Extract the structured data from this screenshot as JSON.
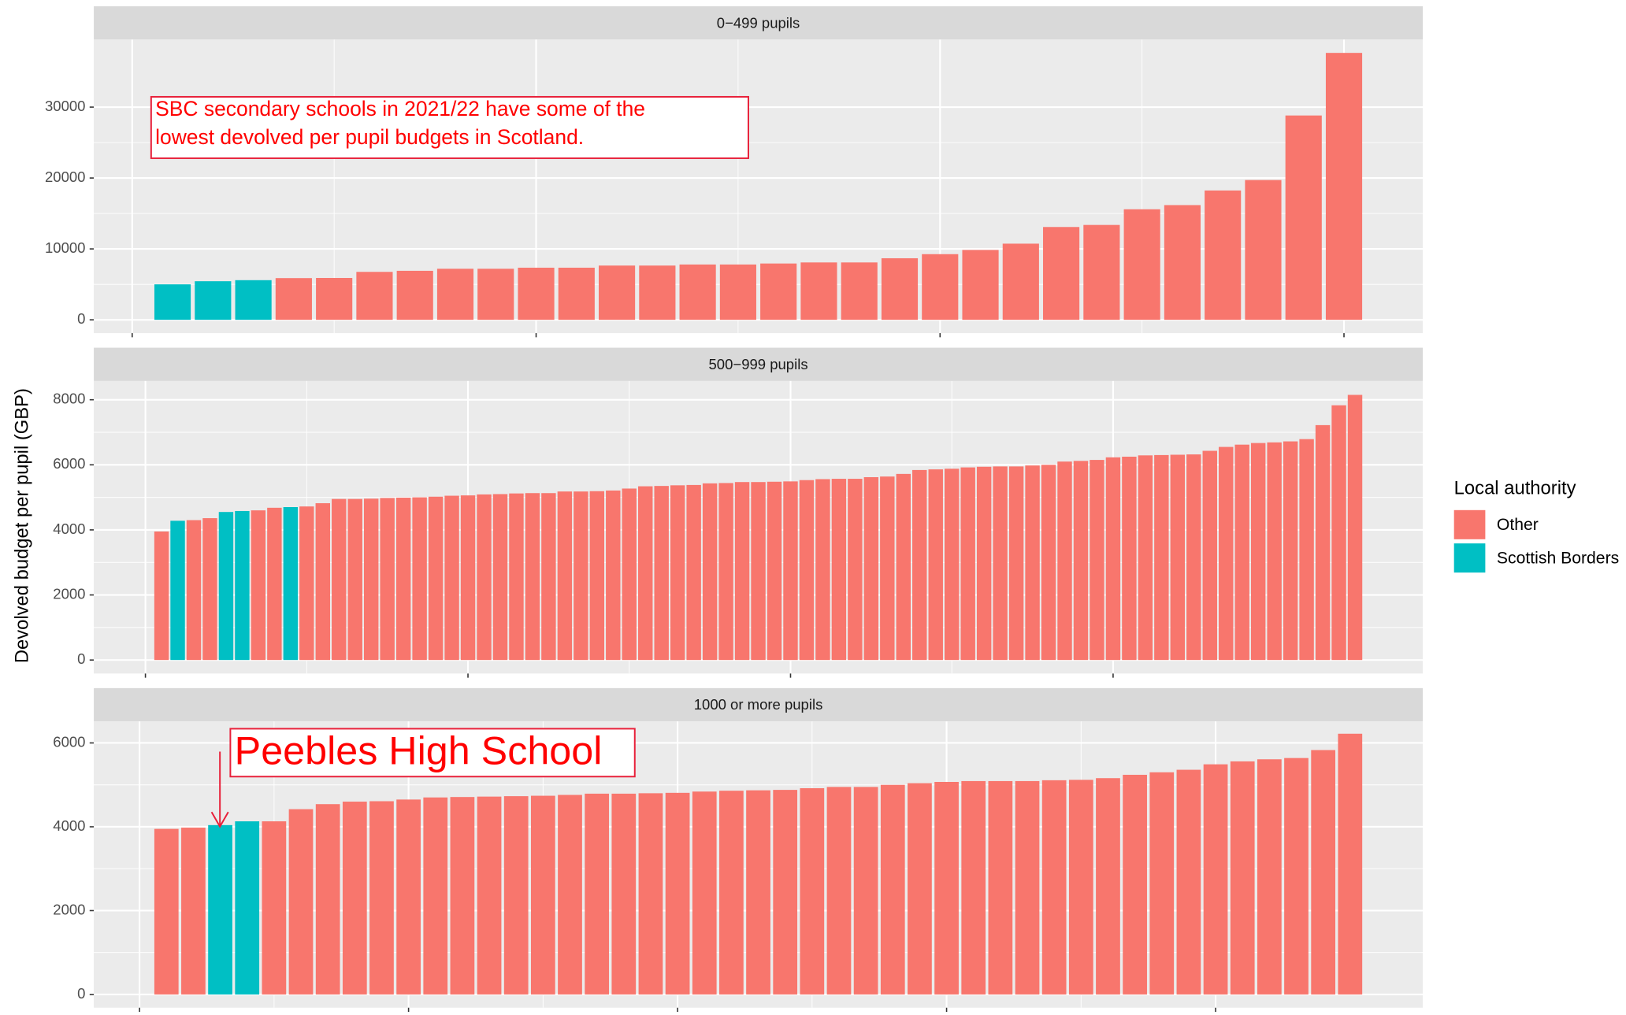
{
  "y_label": "Devolved budget per pupil (GBP)",
  "legend_title": "Local authority",
  "chart_data": [
    {
      "type": "bar",
      "title": "0−499 pupils",
      "annotation": [
        "SBC secondary schools in 2021/22 have some of the",
        "lowest devolved per pupil budgets in Scotland."
      ],
      "xlim": [
        -0.95,
        31.95
      ],
      "xticks": [
        0,
        10,
        20,
        30
      ],
      "ylim": [
        -1880,
        39530
      ],
      "yticks": [
        0,
        10000,
        20000,
        30000
      ],
      "grid": true,
      "series": [
        {
          "name": "Other",
          "color": "#F8766D",
          "x": [
            4,
            5,
            6,
            7,
            8,
            9,
            10,
            11,
            12,
            13,
            14,
            15,
            16,
            17,
            18,
            19,
            20,
            21,
            22,
            23,
            24,
            25,
            26,
            27,
            28,
            29,
            30
          ],
          "values": [
            5880,
            5900,
            6760,
            6910,
            7200,
            7200,
            7350,
            7350,
            7650,
            7650,
            7800,
            7800,
            7940,
            8090,
            8090,
            8680,
            9260,
            9850,
            10740,
            13090,
            13380,
            15590,
            16180,
            18240,
            19710,
            28820,
            37650
          ]
        },
        {
          "name": "Scottish Borders",
          "color": "#00BFC4",
          "x": [
            1,
            2,
            3
          ],
          "values": [
            5000,
            5440,
            5590
          ]
        }
      ]
    },
    {
      "type": "bar",
      "title": "500−999 pupils",
      "xlim": [
        -3.2,
        79.2
      ],
      "xticks": [
        0,
        20,
        40,
        60
      ],
      "ylim": [
        -416,
        8576
      ],
      "yticks": [
        0,
        2000,
        4000,
        6000,
        8000
      ],
      "grid": true,
      "series": [
        {
          "name": "Other",
          "color": "#F8766D",
          "x": [
            1,
            3,
            4,
            7,
            8,
            10,
            11,
            12,
            13,
            14,
            15,
            16,
            17,
            18,
            19,
            20,
            21,
            22,
            23,
            24,
            25,
            26,
            27,
            28,
            29,
            30,
            31,
            32,
            33,
            34,
            35,
            36,
            37,
            38,
            39,
            40,
            41,
            42,
            43,
            44,
            45,
            46,
            47,
            48,
            49,
            50,
            51,
            52,
            53,
            54,
            55,
            56,
            57,
            58,
            59,
            60,
            61,
            62,
            63,
            64,
            65,
            66,
            67,
            68,
            69,
            70,
            71,
            72,
            73,
            74,
            75
          ],
          "values": [
            3950,
            4300,
            4360,
            4600,
            4680,
            4720,
            4820,
            4950,
            4950,
            4960,
            4980,
            4990,
            5000,
            5020,
            5050,
            5060,
            5090,
            5100,
            5120,
            5130,
            5130,
            5180,
            5180,
            5190,
            5210,
            5270,
            5340,
            5350,
            5370,
            5380,
            5430,
            5440,
            5470,
            5470,
            5480,
            5490,
            5530,
            5560,
            5570,
            5570,
            5620,
            5640,
            5720,
            5840,
            5860,
            5880,
            5920,
            5940,
            5950,
            5950,
            5980,
            6000,
            6100,
            6120,
            6150,
            6230,
            6250,
            6290,
            6300,
            6310,
            6320,
            6430,
            6550,
            6620,
            6670,
            6690,
            6720,
            6790,
            7220,
            7830,
            8150
          ]
        },
        {
          "name": "Scottish Borders",
          "color": "#00BFC4",
          "x": [
            2,
            5,
            6,
            9
          ],
          "values": [
            4280,
            4550,
            4580,
            4700
          ]
        }
      ]
    },
    {
      "type": "bar",
      "title": "1000 or more pupils",
      "annotation": [
        "Peebles High School"
      ],
      "xlim": [
        -1.7,
        47.7
      ],
      "xticks": [
        0,
        10,
        20,
        30,
        40
      ],
      "ylim": [
        -316,
        6513
      ],
      "yticks": [
        0,
        2000,
        4000,
        6000
      ],
      "grid": true,
      "series": [
        {
          "name": "Other",
          "color": "#F8766D",
          "x": [
            1,
            2,
            5,
            6,
            7,
            8,
            9,
            10,
            11,
            12,
            13,
            14,
            15,
            16,
            17,
            18,
            19,
            20,
            21,
            22,
            23,
            24,
            25,
            26,
            27,
            28,
            29,
            30,
            31,
            32,
            33,
            34,
            35,
            36,
            37,
            38,
            39,
            40,
            41,
            42,
            43,
            44,
            45
          ],
          "values": [
            3950,
            3980,
            4130,
            4420,
            4540,
            4600,
            4610,
            4650,
            4700,
            4710,
            4720,
            4730,
            4740,
            4760,
            4790,
            4790,
            4800,
            4810,
            4840,
            4860,
            4870,
            4880,
            4920,
            4950,
            4950,
            5000,
            5040,
            5070,
            5090,
            5090,
            5090,
            5110,
            5120,
            5160,
            5240,
            5300,
            5360,
            5490,
            5560,
            5610,
            5640,
            5830,
            6220
          ]
        },
        {
          "name": "Scottish Borders",
          "color": "#00BFC4",
          "x": [
            3,
            4
          ],
          "values": [
            4040,
            4130
          ]
        }
      ]
    }
  ]
}
